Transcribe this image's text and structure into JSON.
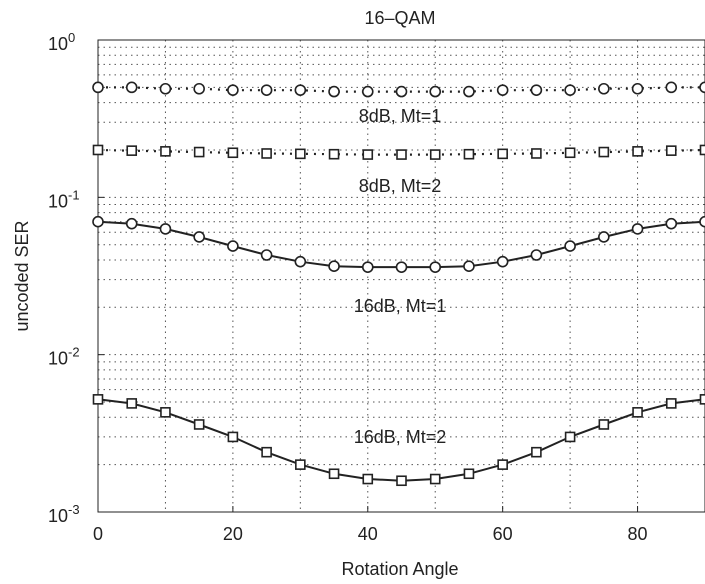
{
  "chart_data": {
    "type": "line",
    "title": "16–QAM",
    "xlabel": "Rotation Angle",
    "ylabel": "uncoded SER",
    "xlim": [
      0,
      90
    ],
    "ylim": [
      0.001,
      1
    ],
    "yscale": "log",
    "grid": true,
    "xticks": [
      0,
      20,
      40,
      60,
      80
    ],
    "xtick_labels": [
      "0",
      "20",
      "40",
      "60",
      "80"
    ],
    "yticks": [
      0.001,
      0.01,
      0.1,
      1
    ],
    "ytick_labels": [
      {
        "base": "10",
        "exp": "-3"
      },
      {
        "base": "10",
        "exp": "-2"
      },
      {
        "base": "10",
        "exp": "-1"
      },
      {
        "base": "10",
        "exp": "0"
      }
    ],
    "x": [
      0,
      5,
      10,
      15,
      20,
      25,
      30,
      35,
      40,
      45,
      50,
      55,
      60,
      65,
      70,
      75,
      80,
      85,
      90
    ],
    "series": [
      {
        "label": "8dB, Mt=1",
        "marker": "circle",
        "line": "dotted",
        "values": [
          0.5,
          0.5,
          0.49,
          0.49,
          0.48,
          0.48,
          0.48,
          0.47,
          0.47,
          0.47,
          0.47,
          0.47,
          0.48,
          0.48,
          0.48,
          0.49,
          0.49,
          0.5,
          0.5
        ]
      },
      {
        "label": "8dB, Mt=2",
        "marker": "square",
        "line": "dotted",
        "values": [
          0.2,
          0.198,
          0.196,
          0.194,
          0.192,
          0.19,
          0.189,
          0.188,
          0.187,
          0.187,
          0.187,
          0.188,
          0.189,
          0.19,
          0.192,
          0.194,
          0.196,
          0.198,
          0.2
        ]
      },
      {
        "label": "16dB, Mt=1",
        "marker": "circle",
        "line": "solid",
        "values": [
          0.07,
          0.068,
          0.063,
          0.056,
          0.049,
          0.043,
          0.039,
          0.0365,
          0.036,
          0.036,
          0.036,
          0.0365,
          0.039,
          0.043,
          0.049,
          0.056,
          0.063,
          0.068,
          0.07
        ]
      },
      {
        "label": "16dB, Mt=2",
        "marker": "square",
        "line": "solid",
        "values": [
          0.0052,
          0.0049,
          0.0043,
          0.0036,
          0.003,
          0.0024,
          0.002,
          0.00175,
          0.00162,
          0.00158,
          0.00162,
          0.00175,
          0.002,
          0.0024,
          0.003,
          0.0036,
          0.0043,
          0.0049,
          0.0052
        ]
      }
    ]
  }
}
